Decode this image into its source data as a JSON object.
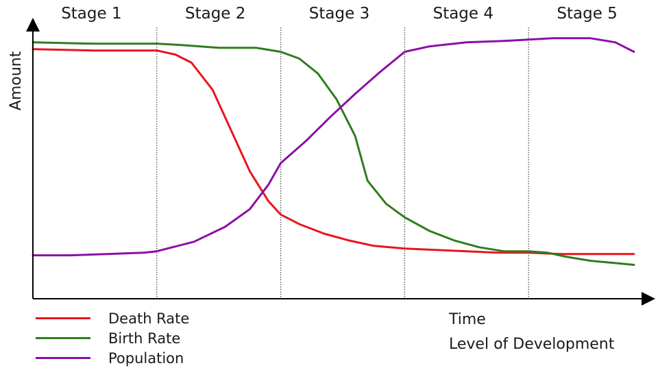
{
  "chart_data": {
    "type": "line",
    "title": "",
    "ylabel": "Amount",
    "xlabel": [
      "Time",
      "Level of Development"
    ],
    "stages": [
      "Stage 1",
      "Stage 2",
      "Stage 3",
      "Stage 4",
      "Stage 5"
    ],
    "x_range": [
      0,
      5
    ],
    "y_range": [
      0,
      100
    ],
    "grid": false,
    "legend_position": "bottom-left",
    "series": [
      {
        "name": "Death Rate",
        "color": "#e8141e",
        "points": [
          [
            0,
            92
          ],
          [
            0.5,
            91.5
          ],
          [
            1,
            91.5
          ],
          [
            1.15,
            90
          ],
          [
            1.28,
            87
          ],
          [
            1.45,
            77
          ],
          [
            1.6,
            62
          ],
          [
            1.75,
            47
          ],
          [
            1.9,
            36
          ],
          [
            2,
            31
          ],
          [
            2.15,
            27.5
          ],
          [
            2.35,
            24
          ],
          [
            2.55,
            21.5
          ],
          [
            2.75,
            19.5
          ],
          [
            3,
            18.5
          ],
          [
            3.25,
            18
          ],
          [
            3.5,
            17.5
          ],
          [
            3.75,
            17
          ],
          [
            4,
            17
          ],
          [
            4.25,
            16.5
          ],
          [
            4.5,
            16.5
          ],
          [
            4.85,
            16.5
          ]
        ]
      },
      {
        "name": "Birth Rate",
        "color": "#2e7d1e",
        "points": [
          [
            0,
            94.5
          ],
          [
            0.5,
            94
          ],
          [
            1,
            94
          ],
          [
            1.2,
            93.5
          ],
          [
            1.5,
            92.5
          ],
          [
            1.8,
            92.5
          ],
          [
            2,
            91
          ],
          [
            2.15,
            88.5
          ],
          [
            2.3,
            83
          ],
          [
            2.45,
            73.5
          ],
          [
            2.6,
            60
          ],
          [
            2.7,
            43.5
          ],
          [
            2.85,
            35
          ],
          [
            3,
            30
          ],
          [
            3.2,
            25
          ],
          [
            3.4,
            21.5
          ],
          [
            3.6,
            19
          ],
          [
            3.8,
            17.5
          ],
          [
            4,
            17.5
          ],
          [
            4.15,
            17
          ],
          [
            4.3,
            15.5
          ],
          [
            4.5,
            14
          ],
          [
            4.85,
            12.5
          ]
        ]
      },
      {
        "name": "Population",
        "color": "#8b0ea6",
        "points": [
          [
            0,
            16
          ],
          [
            0.3,
            16
          ],
          [
            0.6,
            16.5
          ],
          [
            0.9,
            17
          ],
          [
            1,
            17.5
          ],
          [
            1.3,
            21
          ],
          [
            1.55,
            26.5
          ],
          [
            1.75,
            33
          ],
          [
            1.9,
            42
          ],
          [
            2,
            50
          ],
          [
            2.2,
            58
          ],
          [
            2.4,
            67
          ],
          [
            2.6,
            75.5
          ],
          [
            2.8,
            83.5
          ],
          [
            3,
            91
          ],
          [
            3.2,
            93
          ],
          [
            3.5,
            94.5
          ],
          [
            3.8,
            95
          ],
          [
            4,
            95.5
          ],
          [
            4.2,
            96
          ],
          [
            4.5,
            96
          ],
          [
            4.7,
            94.5
          ],
          [
            4.85,
            91
          ]
        ]
      }
    ]
  }
}
